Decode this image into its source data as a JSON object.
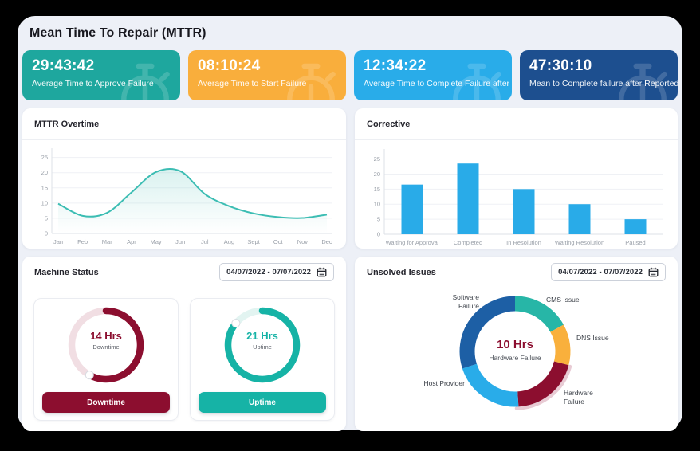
{
  "page": {
    "title": "Mean Time To Repair (MTTR)"
  },
  "stat_cards": [
    {
      "time": "29:43:42",
      "label": "Average Time to Approve Failure",
      "color": "#1EA79E"
    },
    {
      "time": "08:10:24",
      "label": "Average Time to Start Failure",
      "color": "#F9AE3C"
    },
    {
      "time": "12:34:22",
      "label": "Average Time to Complete Failure after Start",
      "color": "#29ACE9"
    },
    {
      "time": "47:30:10",
      "label": "Mean to Complete failure after Reported",
      "color": "#1D4F8F"
    }
  ],
  "chart_data": [
    {
      "id": "mttr_overtime",
      "type": "area",
      "title": "MTTR Overtime",
      "categories": [
        "Jan",
        "Feb",
        "Mar",
        "Apr",
        "May",
        "Jun",
        "Jul",
        "Aug",
        "Sept",
        "Oct",
        "Nov",
        "Dec"
      ],
      "values": [
        9.8,
        5.8,
        6.8,
        13.5,
        20.2,
        20.5,
        13,
        9,
        6.6,
        5.4,
        5.1,
        6.2
      ],
      "yticks": [
        0,
        5,
        10,
        15,
        20,
        25
      ],
      "ylim": [
        0,
        27
      ],
      "line_color": "#3CBDB3",
      "fill_top_color": "rgba(86,195,185,0.22)",
      "grid": true
    },
    {
      "id": "corrective",
      "type": "bar",
      "title": "Corrective",
      "categories": [
        "Waiting for Approval",
        "Completed",
        "In Resolution",
        "Waiting Resolution",
        "Paused"
      ],
      "values": [
        16.5,
        23.5,
        15,
        10,
        5
      ],
      "yticks": [
        0,
        5,
        10,
        15,
        20,
        25
      ],
      "ylim": [
        0,
        27
      ],
      "bar_color": "#29ABE8",
      "grid": true
    },
    {
      "id": "machine_status",
      "type": "gauge",
      "title": "Machine Status",
      "date_range": "04/07/2022 - 07/07/2022",
      "gauges": [
        {
          "value": "14 Hrs",
          "caption": "Downtime",
          "button": "Downtime",
          "percent": 58,
          "color": "#8C0E2F",
          "track": "#F1DEE3"
        },
        {
          "value": "21 Hrs",
          "caption": "Uptime",
          "button": "Uptime",
          "percent": 86,
          "color": "#16B3A6",
          "track": "#E2F4F1"
        }
      ]
    },
    {
      "id": "unsolved_issues",
      "type": "donut",
      "title": "Unsolved Issues",
      "date_range": "04/07/2022 - 07/07/2022",
      "center_value": "10 Hrs",
      "center_label": "Hardware Failure",
      "segments": [
        {
          "label": "CMS Issue",
          "percent": 17,
          "color": "#27B6A7"
        },
        {
          "label": "DNS Issue",
          "percent": 12,
          "color": "#F9B03C"
        },
        {
          "label": "Hardware Failure",
          "percent": 20,
          "color": "#8C0E2F",
          "highlight": true
        },
        {
          "label": "Host Provider",
          "percent": 21,
          "color": "#29ACE9"
        },
        {
          "label": "Software Failure",
          "percent": 30,
          "color": "#1D5FA5"
        }
      ],
      "highlight_halo_color": "#E8CBD4"
    }
  ]
}
